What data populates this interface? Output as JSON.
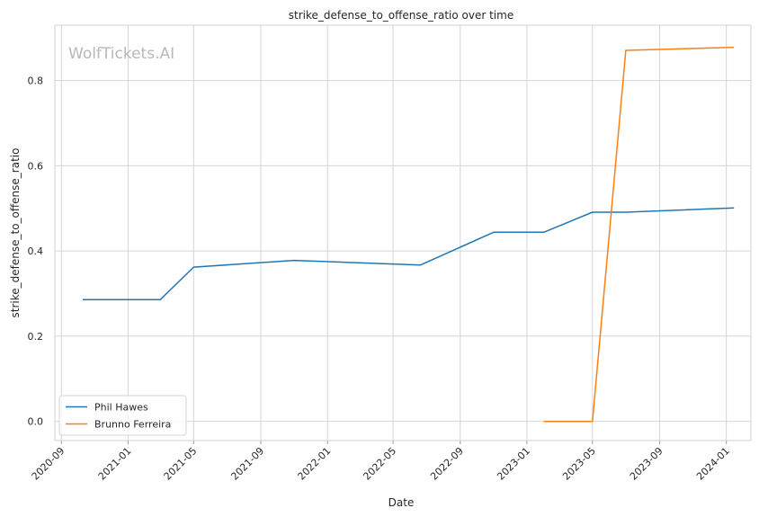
{
  "chart_data": {
    "type": "line",
    "title": "strike_defense_to_offense_ratio over time",
    "xlabel": "Date",
    "ylabel": "strike_defense_to_offense_ratio",
    "watermark": "WolfTickets.AI",
    "x_ticks": [
      "2020-09",
      "2021-01",
      "2021-05",
      "2021-09",
      "2022-01",
      "2022-05",
      "2022-09",
      "2023-01",
      "2023-05",
      "2023-09",
      "2024-01"
    ],
    "y_ticks": [
      "0.0",
      "0.2",
      "0.4",
      "0.6",
      "0.8"
    ],
    "xlim": [
      "2020-08-20",
      "2024-02-15"
    ],
    "ylim": [
      -0.045,
      0.93
    ],
    "grid": true,
    "legend_position": "lower-left",
    "series": [
      {
        "name": "Phil Hawes",
        "color": "#1f77b4",
        "x": [
          "2020-10-10",
          "2021-03-01",
          "2021-05-01",
          "2021-11-01",
          "2022-06-20",
          "2022-11-01",
          "2023-02-01",
          "2023-05-01",
          "2023-07-01",
          "2024-01-15"
        ],
        "y": [
          0.286,
          0.286,
          0.362,
          0.378,
          0.367,
          0.444,
          0.444,
          0.491,
          0.491,
          0.501
        ]
      },
      {
        "name": "Brunno Ferreira",
        "color": "#ff7f0e",
        "x": [
          "2023-02-01",
          "2023-05-01",
          "2023-07-01",
          "2024-01-15"
        ],
        "y": [
          0.0,
          0.0,
          0.871,
          0.878
        ]
      }
    ]
  }
}
